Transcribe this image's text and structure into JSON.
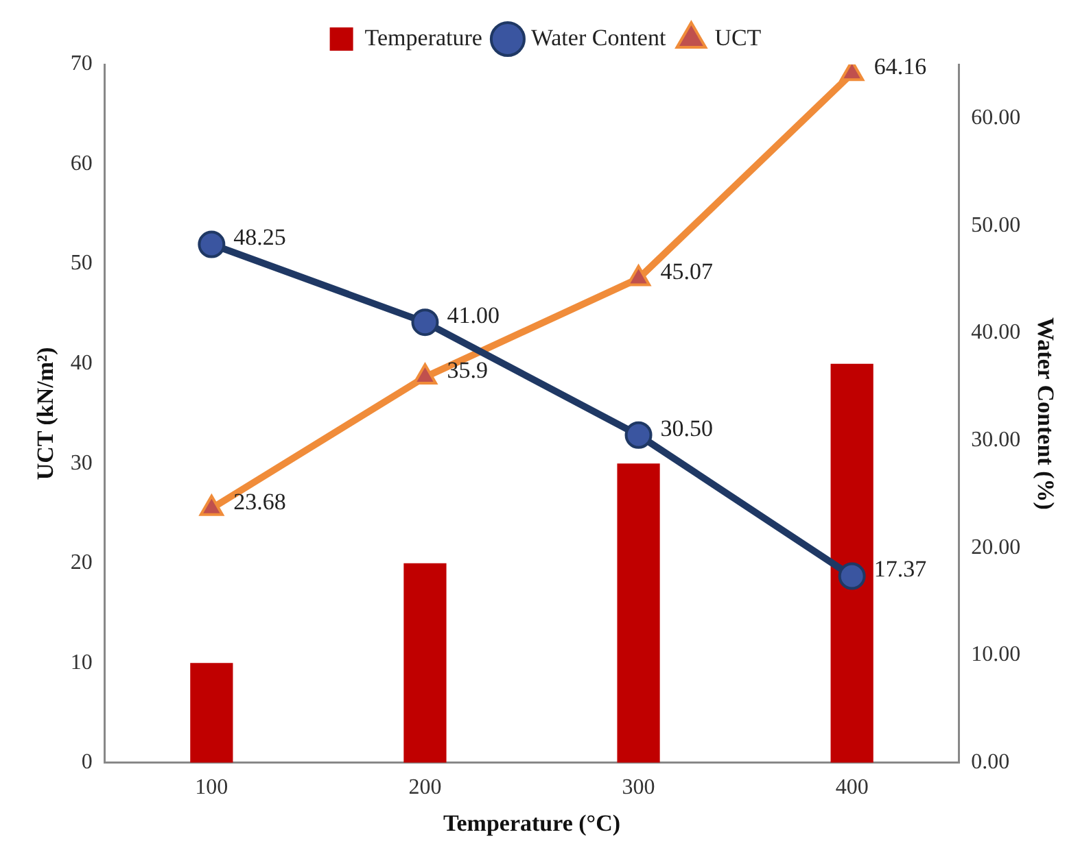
{
  "chart_data": {
    "type": "bar",
    "xlabel": "Temperature (°C)",
    "ylabel": "UCT (kN/m²)",
    "y2label": "Water Content (%)",
    "categories": [
      "100",
      "200",
      "300",
      "400"
    ],
    "series": [
      {
        "name": "Temperature",
        "color": "#c00000",
        "values": [
          10,
          20,
          30,
          40
        ]
      },
      {
        "name": "Water Content",
        "type": "line",
        "axis": "y2",
        "color": "#1f3864",
        "marker": "circle",
        "values": [
          48.25,
          41.0,
          30.5,
          17.37
        ],
        "value_labels": [
          "48.25",
          "41.00",
          "30.50",
          "17.37"
        ]
      },
      {
        "name": "UCT",
        "type": "line",
        "axis": "y2",
        "color": "#f08c3a",
        "marker": "triangle",
        "values": [
          23.68,
          35.9,
          45.07,
          64.16
        ],
        "value_labels": [
          "23.68",
          "35.9",
          "45.07",
          "64.16"
        ]
      }
    ],
    "ylim": [
      0,
      70
    ],
    "yticks": [
      0,
      10,
      20,
      30,
      40,
      50,
      60,
      70
    ],
    "y2lim": [
      0,
      65
    ],
    "y2ticks": [
      {
        "value": 0,
        "label": "0.00"
      },
      {
        "value": 10,
        "label": "10.00"
      },
      {
        "value": 20,
        "label": "20.00"
      },
      {
        "value": 30,
        "label": "30.00"
      },
      {
        "value": 40,
        "label": "40.00"
      },
      {
        "value": 50,
        "label": "50.00"
      },
      {
        "value": 60,
        "label": "60.00"
      }
    ],
    "grid": false,
    "legend": "top"
  }
}
